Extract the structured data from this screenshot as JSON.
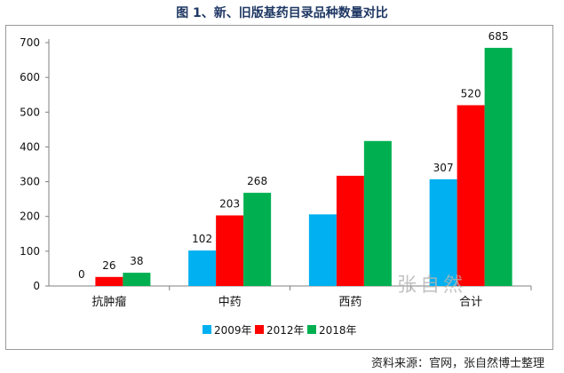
{
  "title": "图 1、新、旧版基药目录品种数量对比",
  "source": "资料来源：官网，张自然博士整理",
  "watermark": "张自然",
  "chart_data": {
    "type": "bar",
    "title": "图 1、新、旧版基药目录品种数量对比",
    "categories": [
      "抗肿瘤",
      "中药",
      "西药",
      "合计"
    ],
    "series": [
      {
        "name": "2009年",
        "color": "#00b0f0",
        "values": [
          0,
          102,
          206,
          307
        ]
      },
      {
        "name": "2012年",
        "color": "#ff0000",
        "values": [
          26,
          203,
          317,
          520
        ]
      },
      {
        "name": "2018年",
        "color": "#00b050",
        "values": [
          38,
          268,
          417,
          685
        ]
      }
    ],
    "data_labels": [
      [
        "0",
        "102",
        "",
        "307"
      ],
      [
        "26",
        "203",
        "",
        "520"
      ],
      [
        "38",
        "268",
        "",
        "685"
      ]
    ],
    "yticks": [
      0,
      100,
      200,
      300,
      400,
      500,
      600,
      700
    ],
    "ylim": [
      0,
      700
    ],
    "xlabel": "",
    "ylabel": "",
    "legend_position": "bottom",
    "grid": false
  }
}
